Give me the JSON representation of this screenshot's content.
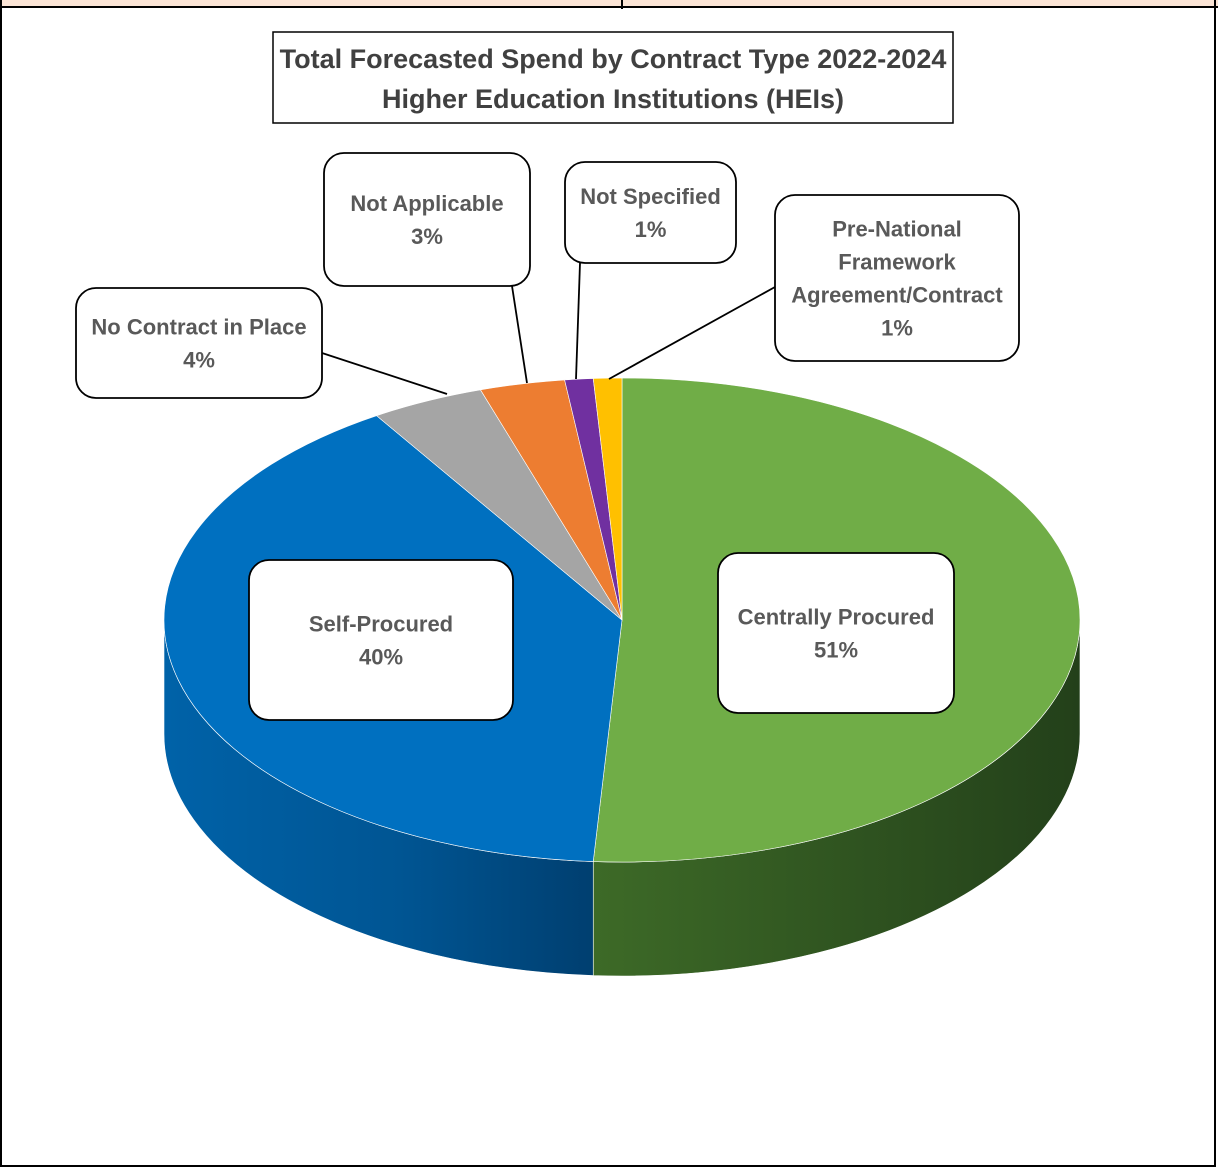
{
  "chart_data": {
    "type": "pie",
    "title": "Total Forecasted Spend by Contract Type 2022-2024",
    "subtitle": "Higher Education Institutions (HEIs)",
    "slices": [
      {
        "label": [
          "Centrally Procured"
        ],
        "percent_label": "51%",
        "value": 51,
        "color": "#70ad47"
      },
      {
        "label": [
          "Self-Procured"
        ],
        "percent_label": "40%",
        "value": 40,
        "color": "#0070c0"
      },
      {
        "label": [
          "No Contract in Place"
        ],
        "percent_label": "4%",
        "value": 4,
        "color": "#a5a5a5"
      },
      {
        "label": [
          "Not Applicable"
        ],
        "percent_label": "3%",
        "value": 3,
        "color": "#ed7d31"
      },
      {
        "label": [
          "Not Specified"
        ],
        "percent_label": "1%",
        "value": 1,
        "color": "#7030a0"
      },
      {
        "label": [
          "Pre-National",
          "Framework",
          "Agreement/Contract"
        ],
        "percent_label": "1%",
        "value": 1,
        "color": "#ffc000"
      }
    ],
    "style": "3d",
    "legend": "none"
  }
}
